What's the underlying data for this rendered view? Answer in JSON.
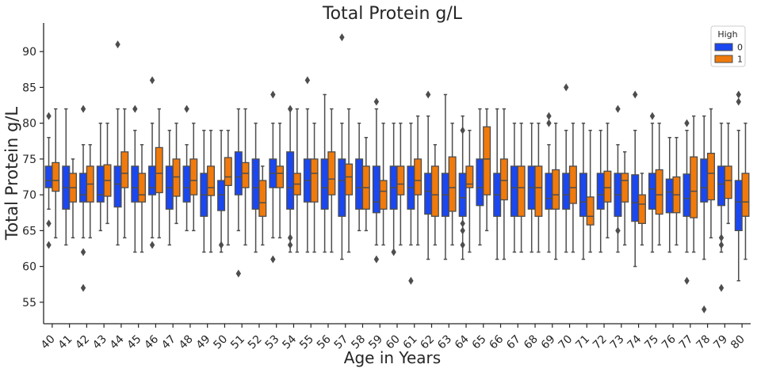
{
  "chart_data": {
    "type": "box",
    "title": "Total Protein g/L",
    "xlabel": "Age in Years",
    "ylabel": "Total Protein g/L",
    "ylim": [
      52,
      94
    ],
    "yticks": [
      55,
      60,
      65,
      70,
      75,
      80,
      85,
      90
    ],
    "grid": false,
    "legend": {
      "title": "High",
      "placement": "top-right",
      "entries": [
        "0",
        "1"
      ]
    },
    "colors": {
      "0": "#1a47f0",
      "1": "#f07a0c",
      "line": "#4d4d4d",
      "axis": "#262626"
    },
    "categories": [
      "40",
      "41",
      "42",
      "43",
      "44",
      "45",
      "46",
      "47",
      "48",
      "49",
      "50",
      "51",
      "52",
      "53",
      "54",
      "55",
      "56",
      "57",
      "58",
      "59",
      "60",
      "61",
      "62",
      "63",
      "64",
      "65",
      "66",
      "67",
      "68",
      "69",
      "70",
      "71",
      "72",
      "73",
      "74",
      "75",
      "76",
      "77",
      "78",
      "79",
      "80"
    ],
    "series": [
      {
        "name": "0",
        "boxes": [
          [
            68,
            71,
            72,
            74,
            78
          ],
          [
            63,
            68,
            71,
            74,
            82
          ],
          [
            64,
            69,
            70,
            73,
            77
          ],
          [
            65,
            69,
            70,
            74,
            80
          ],
          [
            63,
            68.3,
            71.5,
            74,
            82
          ],
          [
            62,
            69,
            71,
            74,
            79
          ],
          [
            64,
            70,
            71,
            74,
            80
          ],
          [
            63,
            68,
            71,
            74,
            79
          ],
          [
            65,
            69,
            71,
            74,
            77
          ],
          [
            62,
            67,
            70,
            73,
            79
          ],
          [
            62,
            67.8,
            70,
            72,
            79
          ],
          [
            65,
            70,
            72.5,
            76,
            82
          ],
          [
            62,
            68,
            71,
            75,
            80
          ],
          [
            64,
            71,
            73,
            75,
            80
          ],
          [
            62,
            68,
            71,
            76,
            82
          ],
          [
            62,
            69,
            72,
            75,
            82
          ],
          [
            62,
            68,
            71,
            75,
            84
          ],
          [
            61,
            67,
            72,
            75,
            80
          ],
          [
            65,
            68,
            71,
            75,
            80
          ],
          [
            63,
            67.5,
            69,
            74,
            82
          ],
          [
            62,
            68,
            71,
            74,
            80
          ],
          [
            63,
            68,
            71,
            74,
            80
          ],
          [
            61,
            67.3,
            70.5,
            73,
            81
          ],
          [
            61,
            67,
            70,
            73,
            84
          ],
          [
            61,
            67,
            69.6,
            73,
            81
          ],
          [
            63,
            68.5,
            71,
            75,
            82
          ],
          [
            61,
            67,
            70,
            73,
            82
          ],
          [
            62,
            67,
            71,
            74,
            80
          ],
          [
            62,
            68,
            71,
            74,
            80
          ],
          [
            62,
            68,
            69.5,
            73,
            77
          ],
          [
            62,
            68,
            70,
            73,
            79
          ],
          [
            61,
            67,
            69,
            73,
            80
          ],
          [
            62,
            68,
            70,
            73,
            79
          ],
          [
            62,
            67,
            70,
            73,
            77
          ],
          [
            60,
            66.3,
            68.9,
            72.8,
            79
          ],
          [
            62,
            68,
            70.8,
            73,
            80
          ],
          [
            62,
            67.5,
            70.4,
            72.2,
            78
          ],
          [
            62,
            67,
            69.5,
            72.9,
            79
          ],
          [
            61,
            69,
            71,
            75,
            81
          ],
          [
            62,
            68.5,
            71.5,
            74,
            80
          ],
          [
            58,
            65,
            69,
            72,
            79
          ]
        ],
        "outliers": [
          [
            63,
            66,
            81
          ],
          [],
          [
            57,
            62,
            82
          ],
          [],
          [
            91
          ],
          [
            82
          ],
          [
            63,
            86
          ],
          [],
          [
            82
          ],
          [],
          [
            63
          ],
          [
            59
          ],
          [],
          [
            61,
            84
          ],
          [
            63,
            64,
            82
          ],
          [
            86
          ],
          [],
          [
            92
          ],
          [],
          [
            61,
            83
          ],
          [
            62
          ],
          [
            58
          ],
          [
            84
          ],
          [],
          [
            63,
            65,
            66,
            79
          ],
          [],
          [],
          [],
          [],
          [
            80,
            81
          ],
          [
            85
          ],
          [],
          [],
          [
            65,
            82
          ],
          [
            84
          ],
          [
            81
          ],
          [],
          [
            58,
            80
          ],
          [
            54
          ],
          [
            57,
            63,
            64
          ],
          [
            83,
            84
          ]
        ]
      },
      {
        "name": "1",
        "boxes": [
          [
            64,
            70.5,
            72,
            74.5,
            82
          ],
          [
            64,
            69,
            71,
            73,
            75
          ],
          [
            64,
            69,
            71.5,
            74,
            77
          ],
          [
            66,
            69.8,
            72,
            74.2,
            80
          ],
          [
            64,
            71,
            73,
            76,
            82
          ],
          [
            62,
            69,
            70,
            73,
            77
          ],
          [
            64,
            70.3,
            73,
            76.6,
            82
          ],
          [
            66,
            69.8,
            72.5,
            75,
            80
          ],
          [
            65,
            70,
            72,
            75,
            80
          ],
          [
            62,
            69.9,
            71,
            74,
            79
          ],
          [
            63,
            71.3,
            72.5,
            75.2,
            79
          ],
          [
            63,
            71,
            73,
            74.5,
            82
          ],
          [
            63,
            67,
            68.9,
            72,
            74
          ],
          [
            64,
            71,
            73,
            74,
            80
          ],
          [
            62,
            70,
            71.5,
            73,
            82
          ],
          [
            62,
            69,
            73,
            75,
            80
          ],
          [
            62,
            70,
            72.2,
            76,
            82
          ],
          [
            62,
            70,
            72.5,
            74.3,
            82
          ],
          [
            65,
            68,
            71,
            74,
            78
          ],
          [
            63,
            68,
            70.5,
            72,
            80
          ],
          [
            63,
            70,
            71.5,
            74,
            80
          ],
          [
            63,
            70,
            72,
            75,
            81
          ],
          [
            63,
            67,
            70,
            74,
            77
          ],
          [
            63,
            67.7,
            71,
            75.3,
            80
          ],
          [
            62,
            71,
            71.5,
            74,
            79
          ],
          [
            65,
            70,
            75,
            79.5,
            82
          ],
          [
            61,
            69.3,
            72,
            75,
            82
          ],
          [
            62,
            67,
            71,
            74,
            80
          ],
          [
            62,
            67,
            71,
            74,
            80
          ],
          [
            61,
            68,
            70,
            73.5,
            80
          ],
          [
            62,
            68.8,
            71,
            74,
            80
          ],
          [
            62,
            65.8,
            67,
            69.7,
            79
          ],
          [
            64,
            69,
            71,
            73.3,
            80
          ],
          [
            63,
            69,
            72,
            73,
            76
          ],
          [
            63,
            66,
            68.7,
            70,
            73
          ],
          [
            63,
            67.3,
            70,
            73.5,
            80
          ],
          [
            63,
            67.5,
            70,
            72.5,
            78
          ],
          [
            62,
            66.8,
            70.5,
            75.3,
            81
          ],
          [
            64,
            69.3,
            73,
            75.8,
            82
          ],
          [
            66,
            69.5,
            72,
            74,
            80
          ],
          [
            61,
            67,
            69,
            73,
            80
          ]
        ],
        "outliers": [
          [],
          [],
          [],
          [],
          [],
          [],
          [],
          [],
          [],
          [],
          [],
          [],
          [],
          [],
          [],
          [],
          [],
          [],
          [],
          [],
          [],
          [],
          [],
          [],
          [],
          [],
          [],
          [],
          [],
          [],
          [],
          [],
          [],
          [],
          [],
          [],
          [],
          [],
          [],
          [],
          []
        ]
      }
    ]
  }
}
